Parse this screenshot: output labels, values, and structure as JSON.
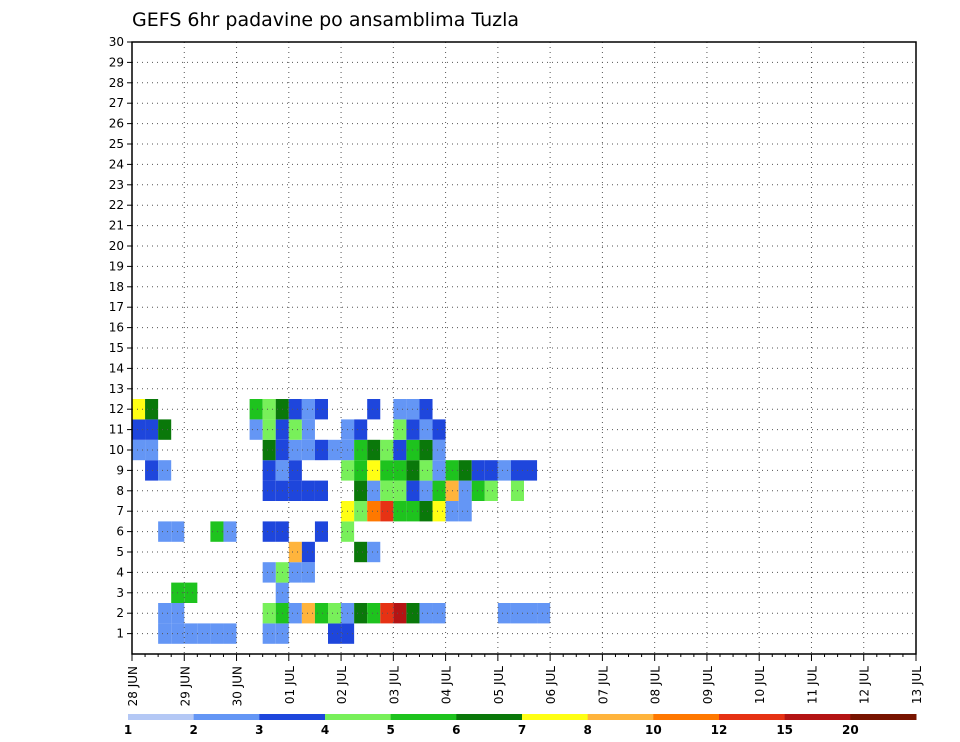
{
  "chart_data": {
    "type": "heatmap",
    "title": "GEFS 6hr padavine po ansamblima Tuzla",
    "xlabel": "",
    "ylabel": "",
    "x_ticks": [
      "28 JUN",
      "29 JUN",
      "30 JUN",
      "01 JUL",
      "02 JUL",
      "03 JUL",
      "04 JUL",
      "05 JUL",
      "06 JUL",
      "07 JUL",
      "08 JUL",
      "09 JUL",
      "10 JUL",
      "11 JUL",
      "12 JUL",
      "13 JUL"
    ],
    "y_ticks": [
      1,
      2,
      3,
      4,
      5,
      6,
      7,
      8,
      9,
      10,
      11,
      12,
      13,
      14,
      15,
      16,
      17,
      18,
      19,
      20,
      21,
      22,
      23,
      24,
      25,
      26,
      27,
      28,
      29,
      30
    ],
    "xlim": [
      0,
      15
    ],
    "ylim": [
      0,
      30
    ],
    "x_unit": "days from 28 JUN 00Z (6-hourly steps)",
    "grid": true,
    "legend": "bottom colorbar",
    "colorbar": {
      "labels": [
        "1",
        "2",
        "3",
        "4",
        "5",
        "6",
        "7",
        "8",
        "10",
        "12",
        "15",
        "20"
      ],
      "label_positions": [
        0,
        1,
        2,
        3,
        4,
        5,
        6,
        7,
        8,
        9,
        10,
        11
      ],
      "colors": [
        "#b4c8f5",
        "#6496f5",
        "#1e46dc",
        "#78f05a",
        "#1ec31e",
        "#0a780a",
        "#ffff14",
        "#ffb43c",
        "#ff7800",
        "#e63214",
        "#b41414",
        "#781400"
      ]
    },
    "cells": [
      [
        2,
        1,
        1
      ],
      [
        3,
        1,
        1
      ],
      [
        6,
        1,
        1
      ],
      [
        7,
        1,
        1
      ],
      [
        16,
        1,
        2
      ],
      [
        15,
        1,
        2
      ],
      [
        10,
        1,
        1
      ],
      [
        11,
        1,
        1
      ],
      [
        5,
        1,
        1
      ],
      [
        4,
        1,
        1
      ],
      [
        2,
        2,
        1
      ],
      [
        3,
        2,
        1
      ],
      [
        10,
        2,
        3
      ],
      [
        11,
        2,
        4
      ],
      [
        12,
        2,
        1
      ],
      [
        13,
        2,
        7
      ],
      [
        14,
        2,
        4
      ],
      [
        15,
        2,
        3
      ],
      [
        16,
        2,
        1
      ],
      [
        17,
        2,
        5
      ],
      [
        18,
        2,
        4
      ],
      [
        19,
        2,
        9
      ],
      [
        20,
        2,
        10
      ],
      [
        21,
        2,
        5
      ],
      [
        22,
        2,
        1
      ],
      [
        23,
        2,
        1
      ],
      [
        28,
        2,
        1
      ],
      [
        29,
        2,
        1
      ],
      [
        30,
        2,
        1
      ],
      [
        31,
        2,
        1
      ],
      [
        3,
        3,
        4
      ],
      [
        4,
        3,
        4
      ],
      [
        11,
        3,
        1
      ],
      [
        11,
        4,
        3
      ],
      [
        10,
        4,
        1
      ],
      [
        12,
        4,
        1
      ],
      [
        13,
        4,
        1
      ],
      [
        12,
        5,
        7
      ],
      [
        13,
        5,
        2
      ],
      [
        17,
        5,
        5
      ],
      [
        18,
        5,
        1
      ],
      [
        2,
        6,
        1
      ],
      [
        3,
        6,
        1
      ],
      [
        6,
        6,
        4
      ],
      [
        7,
        6,
        1
      ],
      [
        10,
        6,
        2
      ],
      [
        11,
        6,
        2
      ],
      [
        16,
        6,
        3
      ],
      [
        14,
        6,
        2
      ],
      [
        16,
        7,
        6
      ],
      [
        17,
        7,
        3
      ],
      [
        18,
        7,
        8
      ],
      [
        19,
        7,
        9
      ],
      [
        20,
        7,
        4
      ],
      [
        21,
        7,
        4
      ],
      [
        22,
        7,
        5
      ],
      [
        23,
        7,
        6
      ],
      [
        24,
        7,
        1
      ],
      [
        25,
        7,
        1
      ],
      [
        10,
        8,
        2
      ],
      [
        11,
        8,
        2
      ],
      [
        12,
        8,
        2
      ],
      [
        13,
        8,
        2
      ],
      [
        14,
        8,
        2
      ],
      [
        17,
        8,
        5
      ],
      [
        18,
        8,
        1
      ],
      [
        19,
        8,
        3
      ],
      [
        20,
        8,
        3
      ],
      [
        21,
        8,
        2
      ],
      [
        22,
        8,
        1
      ],
      [
        23,
        8,
        4
      ],
      [
        24,
        8,
        7
      ],
      [
        25,
        8,
        1
      ],
      [
        26,
        8,
        4
      ],
      [
        27,
        8,
        3
      ],
      [
        29,
        8,
        3
      ],
      [
        1,
        9,
        2
      ],
      [
        2,
        9,
        1
      ],
      [
        10,
        9,
        2
      ],
      [
        11,
        9,
        1
      ],
      [
        12,
        9,
        2
      ],
      [
        16,
        9,
        3
      ],
      [
        17,
        9,
        4
      ],
      [
        18,
        9,
        6
      ],
      [
        19,
        9,
        4
      ],
      [
        20,
        9,
        4
      ],
      [
        21,
        9,
        5
      ],
      [
        22,
        9,
        3
      ],
      [
        23,
        9,
        1
      ],
      [
        24,
        9,
        4
      ],
      [
        25,
        9,
        5
      ],
      [
        26,
        9,
        2
      ],
      [
        27,
        9,
        2
      ],
      [
        28,
        9,
        1
      ],
      [
        29,
        9,
        2
      ],
      [
        30,
        9,
        2
      ],
      [
        0,
        10,
        1
      ],
      [
        1,
        10,
        1
      ],
      [
        10,
        10,
        5
      ],
      [
        11,
        10,
        2
      ],
      [
        12,
        10,
        1
      ],
      [
        13,
        10,
        1
      ],
      [
        14,
        10,
        2
      ],
      [
        15,
        10,
        1
      ],
      [
        16,
        10,
        1
      ],
      [
        17,
        10,
        4
      ],
      [
        18,
        10,
        5
      ],
      [
        19,
        10,
        3
      ],
      [
        20,
        10,
        2
      ],
      [
        21,
        10,
        4
      ],
      [
        22,
        10,
        5
      ],
      [
        23,
        10,
        1
      ],
      [
        0,
        11,
        2
      ],
      [
        1,
        11,
        2
      ],
      [
        2,
        11,
        5
      ],
      [
        9,
        11,
        1
      ],
      [
        10,
        11,
        3
      ],
      [
        11,
        11,
        2
      ],
      [
        12,
        11,
        3
      ],
      [
        13,
        11,
        1
      ],
      [
        16,
        11,
        1
      ],
      [
        17,
        11,
        2
      ],
      [
        20,
        11,
        3
      ],
      [
        21,
        11,
        2
      ],
      [
        22,
        11,
        1
      ],
      [
        23,
        11,
        2
      ],
      [
        0,
        12,
        6
      ],
      [
        1,
        12,
        5
      ],
      [
        9,
        12,
        4
      ],
      [
        10,
        12,
        3
      ],
      [
        11,
        12,
        5
      ],
      [
        12,
        12,
        2
      ],
      [
        13,
        12,
        1
      ],
      [
        14,
        12,
        2
      ],
      [
        18,
        12,
        2
      ],
      [
        20,
        12,
        1
      ],
      [
        21,
        12,
        1
      ],
      [
        22,
        12,
        2
      ]
    ],
    "note": "cells: [time_index (6-hourly from 28 JUN 00Z), ensemble_member, colour_class_index]"
  }
}
